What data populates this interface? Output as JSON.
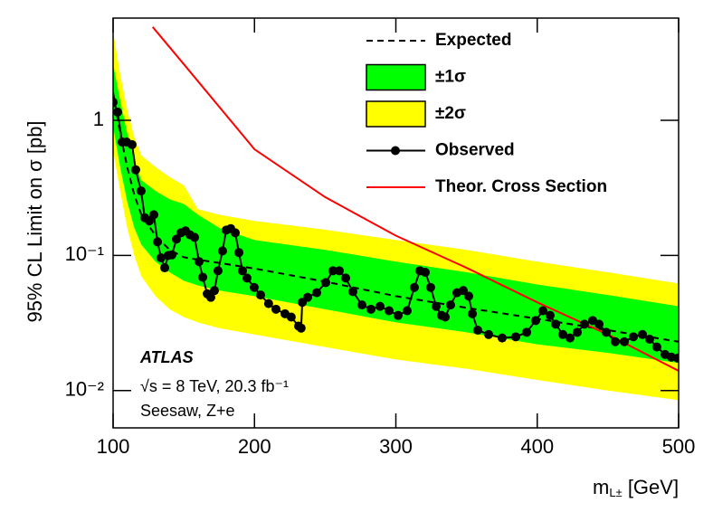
{
  "chart_data": {
    "type": "line",
    "y_label": "95% CL Limit on σ [pb]",
    "x_label": {
      "main": "m",
      "sub": "L±",
      "unit": " [GeV]"
    },
    "annotations": [
      "ATLAS",
      "√s = 8 TeV, 20.3 fb⁻¹",
      "Seesaw, Z+e"
    ],
    "xlim": [
      100,
      500
    ],
    "xticks": [
      100,
      200,
      300,
      400,
      500
    ],
    "ylim": [
      0.0053,
      5.7
    ],
    "yticks": [
      {
        "value": 0.01,
        "label": "10⁻²"
      },
      {
        "value": 0.1,
        "label": "10⁻¹"
      },
      1
    ],
    "log_y": true,
    "legend": "top-right",
    "series": [
      {
        "name": "Expected",
        "style": "dashed",
        "color": "#000000",
        "x": [
          100,
          105,
          110,
          115,
          120,
          130,
          140,
          150,
          160,
          175,
          200,
          250,
          300,
          350,
          400,
          450,
          500
        ],
        "values": [
          1.6,
          0.8,
          0.45,
          0.28,
          0.2,
          0.14,
          0.11,
          0.097,
          0.093,
          0.088,
          0.08,
          0.064,
          0.05,
          0.041,
          0.034,
          0.028,
          0.023
        ]
      },
      {
        "name": "±1σ",
        "style": "band",
        "color": "#00ff00",
        "x": [
          100,
          105,
          110,
          115,
          120,
          130,
          140,
          150,
          160,
          175,
          200,
          250,
          300,
          350,
          400,
          450,
          500
        ],
        "upper": [
          2.6,
          1.4,
          0.8,
          0.5,
          0.36,
          0.3,
          0.26,
          0.24,
          0.2,
          0.16,
          0.13,
          0.11,
          0.09,
          0.075,
          0.061,
          0.051,
          0.042
        ],
        "lower": [
          0.9,
          0.45,
          0.25,
          0.16,
          0.12,
          0.09,
          0.075,
          0.065,
          0.06,
          0.055,
          0.05,
          0.04,
          0.032,
          0.027,
          0.022,
          0.019,
          0.016
        ]
      },
      {
        "name": "±2σ",
        "style": "band",
        "color": "#ffff00",
        "x": [
          100,
          105,
          110,
          115,
          120,
          130,
          140,
          150,
          160,
          175,
          200,
          250,
          300,
          350,
          400,
          450,
          500
        ],
        "upper": [
          4.5,
          2.2,
          1.2,
          0.75,
          0.55,
          0.45,
          0.38,
          0.33,
          0.22,
          0.2,
          0.18,
          0.155,
          0.13,
          0.11,
          0.09,
          0.075,
          0.062
        ],
        "lower": [
          0.6,
          0.3,
          0.16,
          0.1,
          0.07,
          0.05,
          0.04,
          0.035,
          0.032,
          0.029,
          0.026,
          0.021,
          0.017,
          0.0145,
          0.012,
          0.01,
          0.0085
        ]
      },
      {
        "name": "Observed",
        "style": "markers",
        "color": "#000000",
        "x": [
          100,
          103.2,
          106.4,
          109.6,
          113.4,
          116,
          119.8,
          122.4,
          125.6,
          128.8,
          131.4,
          133.9,
          136.5,
          139,
          141.6,
          144.8,
          148,
          151.2,
          154.4,
          157.6,
          160.8,
          163.4,
          166.6,
          169.1,
          171.7,
          174.2,
          177.4,
          180,
          183.2,
          186.4,
          189,
          191.5,
          194.7,
          199.8,
          204.3,
          210,
          215.2,
          221.6,
          226,
          231.2,
          233,
          233.8,
          237.6,
          244,
          250.4,
          255.5,
          260,
          264.5,
          269.6,
          276,
          282.4,
          288.8,
          295.2,
          301.6,
          308,
          313.1,
          317,
          320.8,
          324.6,
          328.5,
          332.3,
          334.9,
          338.7,
          343.2,
          347.7,
          351.5,
          354.1,
          357.9,
          365.6,
          375.2,
          384.8,
          392.5,
          398.9,
          404,
          409.1,
          413,
          418.1,
          423.2,
          428.3,
          433.4,
          439.2,
          443.7,
          448.8,
          455.2,
          461.6,
          468,
          474.4,
          479.5,
          484.6,
          490.4,
          494.9,
          499.4
        ],
        "values": [
          1.36,
          1.15,
          0.69,
          0.69,
          0.66,
          0.43,
          0.3,
          0.19,
          0.18,
          0.2,
          0.126,
          0.096,
          0.081,
          0.1,
          0.101,
          0.132,
          0.147,
          0.152,
          0.142,
          0.136,
          0.09,
          0.069,
          0.052,
          0.049,
          0.055,
          0.077,
          0.108,
          0.154,
          0.158,
          0.147,
          0.105,
          0.077,
          0.068,
          0.058,
          0.051,
          0.044,
          0.04,
          0.037,
          0.035,
          0.03,
          0.029,
          0.045,
          0.049,
          0.053,
          0.063,
          0.077,
          0.077,
          0.068,
          0.054,
          0.043,
          0.04,
          0.042,
          0.039,
          0.036,
          0.039,
          0.058,
          0.077,
          0.075,
          0.058,
          0.042,
          0.036,
          0.035,
          0.043,
          0.053,
          0.055,
          0.05,
          0.037,
          0.028,
          0.026,
          0.0245,
          0.025,
          0.027,
          0.033,
          0.039,
          0.036,
          0.031,
          0.026,
          0.0245,
          0.027,
          0.031,
          0.033,
          0.031,
          0.027,
          0.023,
          0.023,
          0.025,
          0.026,
          0.024,
          0.021,
          0.0185,
          0.0177,
          0.0174
        ]
      },
      {
        "name": "Theor. Cross Section",
        "style": "solid",
        "color": "#ff0000",
        "x": [
          128,
          150,
          200,
          250,
          300,
          350,
          400,
          450,
          500
        ],
        "values": [
          4.9,
          2.6,
          0.61,
          0.27,
          0.14,
          0.081,
          0.045,
          0.026,
          0.014
        ]
      }
    ]
  }
}
